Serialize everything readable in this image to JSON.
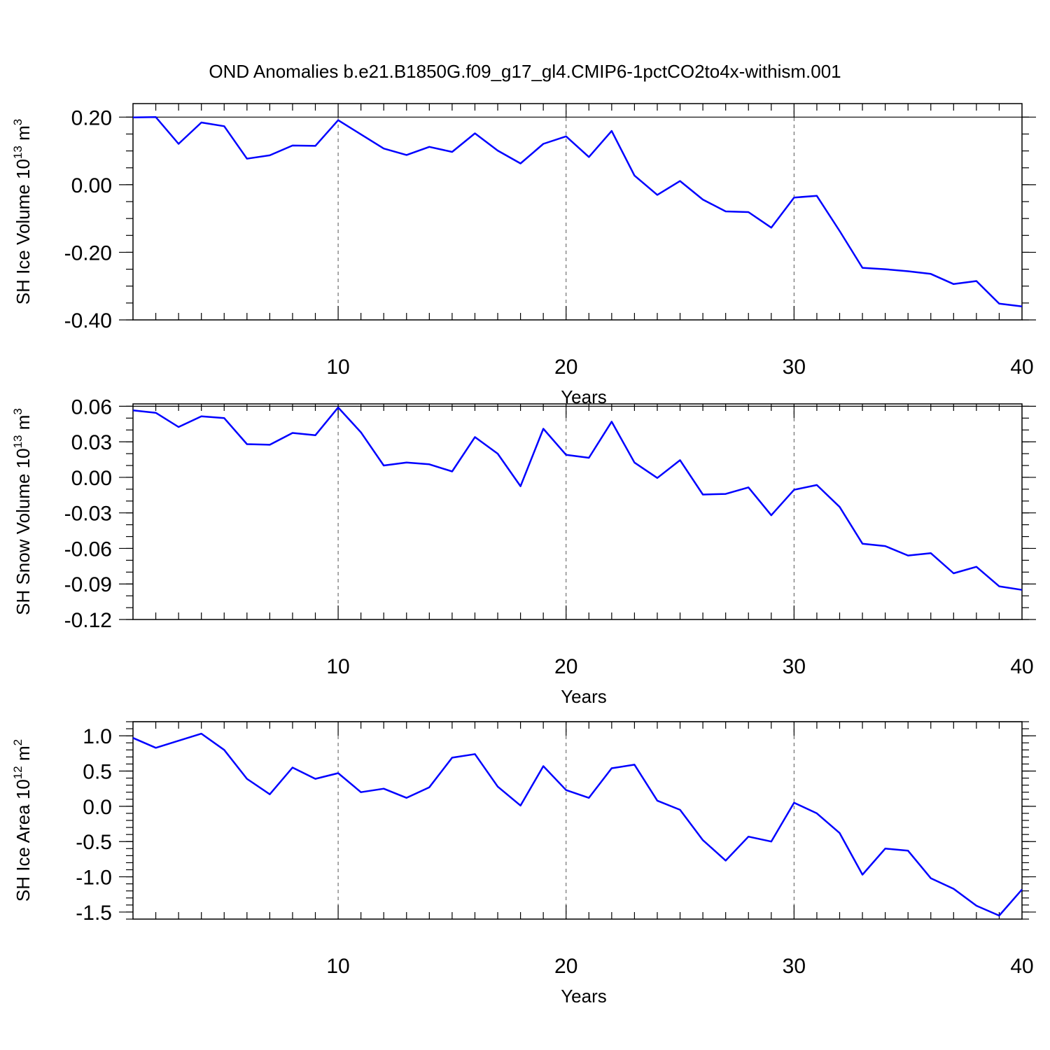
{
  "title": "OND Anomalies b.e21.B1850G.f09_g17_gl4.CMIP6-1pctCO2to4x-withism.001",
  "chart_data": [
    {
      "type": "line",
      "name": "ice-volume",
      "ylabel_main": "SH Ice Volume 10",
      "ylabel_exp": "13",
      "ylabel_unit": " m",
      "ylabel_unit_exp": "3",
      "xlabel": "Years",
      "xlim": [
        1,
        40
      ],
      "ylim": [
        -0.4,
        0.24
      ],
      "yticks": [
        -0.4,
        -0.2,
        0.0,
        0.2
      ],
      "ytick_labels": [
        "-0.40",
        "-0.20",
        "0.00",
        "0.20"
      ],
      "yminor_step": 0.05,
      "xticks": [
        10,
        20,
        30,
        40
      ],
      "xtick_labels": [
        "10",
        "20",
        "30",
        "40"
      ],
      "ref_line": 0.2,
      "color": "#0000ff",
      "x": [
        1,
        2,
        3,
        4,
        5,
        6,
        7,
        8,
        9,
        10,
        11,
        12,
        13,
        14,
        15,
        16,
        17,
        18,
        19,
        20,
        21,
        22,
        23,
        24,
        25,
        26,
        27,
        28,
        29,
        30,
        31,
        32,
        33,
        34,
        35,
        36,
        37,
        38,
        39,
        40
      ],
      "y": [
        0.199,
        0.2,
        0.121,
        0.184,
        0.173,
        0.077,
        0.087,
        0.116,
        0.115,
        0.191,
        0.149,
        0.107,
        0.088,
        0.112,
        0.097,
        0.152,
        0.101,
        0.063,
        0.121,
        0.143,
        0.082,
        0.159,
        0.027,
        -0.03,
        0.011,
        -0.044,
        -0.079,
        -0.081,
        -0.127,
        -0.038,
        -0.033,
        -0.137,
        -0.246,
        -0.25,
        -0.256,
        -0.264,
        -0.294,
        -0.285,
        -0.352,
        -0.36
      ]
    },
    {
      "type": "line",
      "name": "snow-volume",
      "ylabel_main": "SH Snow Volume 10",
      "ylabel_exp": "13",
      "ylabel_unit": " m",
      "ylabel_unit_exp": "3",
      "xlabel": "Years",
      "xlim": [
        1,
        40
      ],
      "ylim": [
        -0.12,
        0.062
      ],
      "yticks": [
        -0.12,
        -0.09,
        -0.06,
        -0.03,
        0.0,
        0.03,
        0.06
      ],
      "ytick_labels": [
        "-0.12",
        "-0.09",
        "-0.06",
        "-0.03",
        "0.00",
        "0.03",
        "0.06"
      ],
      "yminor_step": 0.01,
      "xticks": [
        10,
        20,
        30,
        40
      ],
      "xtick_labels": [
        "10",
        "20",
        "30",
        "40"
      ],
      "ref_line": 0.06,
      "color": "#0000ff",
      "x": [
        1,
        2,
        3,
        4,
        5,
        6,
        7,
        8,
        9,
        10,
        11,
        12,
        13,
        14,
        15,
        16,
        17,
        18,
        19,
        20,
        21,
        22,
        23,
        24,
        25,
        26,
        27,
        28,
        29,
        30,
        31,
        32,
        33,
        34,
        35,
        36,
        37,
        38,
        39,
        40
      ],
      "y": [
        0.0565,
        0.0545,
        0.0425,
        0.0515,
        0.05,
        0.028,
        0.0275,
        0.0375,
        0.0355,
        0.059,
        0.038,
        0.01,
        0.0125,
        0.011,
        0.005,
        0.034,
        0.02,
        -0.0075,
        0.041,
        0.019,
        0.0165,
        0.047,
        0.0125,
        -0.0005,
        0.0145,
        -0.0145,
        -0.014,
        -0.0085,
        -0.032,
        -0.0105,
        -0.0065,
        -0.025,
        -0.056,
        -0.058,
        -0.066,
        -0.064,
        -0.081,
        -0.0755,
        -0.092,
        -0.095
      ]
    },
    {
      "type": "line",
      "name": "ice-area",
      "ylabel_main": "SH Ice Area 10",
      "ylabel_exp": "12",
      "ylabel_unit": " m",
      "ylabel_unit_exp": "2",
      "xlabel": "Years",
      "xlim": [
        1,
        40
      ],
      "ylim": [
        -1.6,
        1.2
      ],
      "yticks": [
        -1.5,
        -1.0,
        -0.5,
        0.0,
        0.5,
        1.0
      ],
      "ytick_labels": [
        "-1.5",
        "-1.0",
        "-0.5",
        "0.0",
        "0.5",
        "1.0"
      ],
      "yminor_step": 0.1,
      "xticks": [
        10,
        20,
        30,
        40
      ],
      "xtick_labels": [
        "10",
        "20",
        "30",
        "40"
      ],
      "ref_line": 1.2,
      "color": "#0000ff",
      "x": [
        1,
        2,
        3,
        4,
        5,
        6,
        7,
        8,
        9,
        10,
        11,
        12,
        13,
        14,
        15,
        16,
        17,
        18,
        19,
        20,
        21,
        22,
        23,
        24,
        25,
        26,
        27,
        28,
        29,
        30,
        31,
        32,
        33,
        34,
        35,
        36,
        37,
        38,
        39,
        40
      ],
      "y": [
        0.97,
        0.83,
        0.93,
        1.03,
        0.8,
        0.39,
        0.17,
        0.55,
        0.39,
        0.47,
        0.2,
        0.25,
        0.12,
        0.27,
        0.69,
        0.74,
        0.28,
        0.01,
        0.57,
        0.23,
        0.12,
        0.54,
        0.59,
        0.08,
        -0.05,
        -0.48,
        -0.77,
        -0.43,
        -0.5,
        0.05,
        -0.1,
        -0.38,
        -0.97,
        -0.6,
        -0.63,
        -1.02,
        -1.17,
        -1.41,
        -1.55,
        -1.18
      ]
    }
  ]
}
